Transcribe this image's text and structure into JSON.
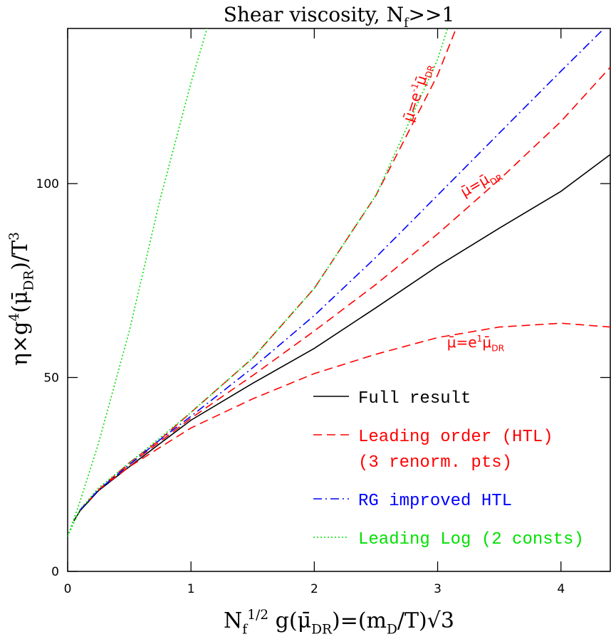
{
  "chart_data": {
    "type": "line",
    "title": [
      {
        "text": "Shear viscosity, N",
        "style": "base"
      },
      {
        "text": "f",
        "style": "sub"
      },
      {
        "text": ">>1",
        "style": "base"
      }
    ],
    "x_label": [
      {
        "text": "N",
        "style": "base"
      },
      {
        "text": "f",
        "style": "sub"
      },
      {
        "text": "1/2",
        "style": "sup"
      },
      {
        "text": " g(μ̄",
        "style": "base"
      },
      {
        "text": "DR",
        "style": "sub"
      },
      {
        "text": ")=(m",
        "style": "base"
      },
      {
        "text": "D",
        "style": "sub"
      },
      {
        "text": "/T)√3",
        "style": "base"
      }
    ],
    "y_label": [
      {
        "text": "η×g",
        "style": "base"
      },
      {
        "text": "4",
        "style": "sup"
      },
      {
        "text": "(μ̄",
        "style": "base"
      },
      {
        "text": "DR",
        "style": "sub"
      },
      {
        "text": ")/T",
        "style": "base"
      },
      {
        "text": "3",
        "style": "sup"
      }
    ],
    "xlim": [
      0,
      4.4
    ],
    "ylim": [
      0,
      140
    ],
    "xticks": [
      0,
      1,
      2,
      3,
      4
    ],
    "yticks": [
      0,
      50,
      100
    ],
    "series": [
      {
        "color": "#000000",
        "dash": "solid",
        "x": [
          0.05,
          0.1,
          0.25,
          0.5,
          0.75,
          1,
          1.5,
          2,
          2.5,
          3,
          3.5,
          4,
          4.4
        ],
        "values": [
          13,
          15.6,
          20.8,
          27,
          33,
          39,
          48.5,
          57.5,
          68,
          78.7,
          88.5,
          98,
          107.5
        ]
      },
      {
        "color": "#ff0000",
        "dash": "dashed",
        "x": [
          0.1,
          0.25,
          0.5,
          0.75,
          1,
          1.5,
          2,
          2.5,
          3,
          3.5,
          4,
          4.4
        ],
        "values": [
          15.8,
          21,
          27.5,
          33.5,
          39.5,
          50.5,
          62,
          74,
          87,
          101,
          116,
          130
        ]
      },
      {
        "color": "#ff0000",
        "dash": "dashed",
        "x": [
          0.1,
          0.25,
          0.5,
          0.75,
          1,
          1.5,
          2,
          2.5,
          3,
          3.15
        ],
        "values": [
          15.8,
          21,
          28,
          34,
          41,
          55,
          73,
          97,
          128,
          140
        ]
      },
      {
        "color": "#ff0000",
        "dash": "dashed",
        "x": [
          0.1,
          0.25,
          0.5,
          0.75,
          1,
          1.5,
          2,
          2.5,
          3,
          3.5,
          4,
          4.4
        ],
        "values": [
          15.8,
          21,
          27,
          32,
          37,
          44.5,
          51,
          56,
          60.3,
          63,
          64,
          63
        ]
      },
      {
        "color": "#0000ff",
        "dash": "dashdot",
        "x": [
          0.1,
          0.25,
          0.5,
          0.75,
          1,
          1.5,
          2,
          2.5,
          3,
          3.5,
          4,
          4.35
        ],
        "values": [
          15.8,
          21,
          27.5,
          34,
          40,
          52.5,
          66,
          81,
          97,
          113,
          129,
          140
        ]
      },
      {
        "color": "#00e000",
        "dash": "dotted",
        "x": [
          0,
          0.1,
          0.25,
          0.5,
          0.75,
          1,
          1.13
        ],
        "values": [
          9,
          18,
          33,
          62,
          96,
          126,
          140
        ]
      },
      {
        "color": "#00e000",
        "dash": "dotted",
        "x": [
          0,
          0.1,
          0.25,
          0.5,
          0.75,
          1,
          1.5,
          2,
          2.5,
          3,
          3.08
        ],
        "values": [
          9,
          16,
          21.5,
          28,
          34.5,
          41,
          55,
          73,
          97,
          132,
          140
        ]
      }
    ],
    "legend": [
      {
        "lines": [
          "Full result"
        ],
        "color": "#000000",
        "dash": "solid"
      },
      {
        "lines": [
          "Leading order (HTL)",
          "(3 renorm. pts)"
        ],
        "color": "#ff0000",
        "dash": "dashed"
      },
      {
        "lines": [
          "RG improved HTL"
        ],
        "color": "#0000ff",
        "dash": "dashdot"
      },
      {
        "lines": [
          "Leading Log (2 consts)"
        ],
        "color": "#00e000",
        "dash": "dotted"
      }
    ],
    "annotations": [
      {
        "color": "#ff0000",
        "parts": [
          {
            "text": "μ̄=e",
            "style": "base"
          },
          {
            "text": "-1",
            "style": "sup"
          },
          {
            "text": "μ̄",
            "style": "base"
          },
          {
            "text": "DR",
            "style": "sub"
          }
        ]
      },
      {
        "color": "#ff0000",
        "parts": [
          {
            "text": "μ̄=μ̄",
            "style": "base"
          },
          {
            "text": "DR",
            "style": "sub"
          }
        ]
      },
      {
        "color": "#ff0000",
        "parts": [
          {
            "text": "μ̄=e",
            "style": "base"
          },
          {
            "text": "1",
            "style": "sup"
          },
          {
            "text": "μ̄",
            "style": "base"
          },
          {
            "text": "DR",
            "style": "sub"
          }
        ]
      }
    ]
  }
}
